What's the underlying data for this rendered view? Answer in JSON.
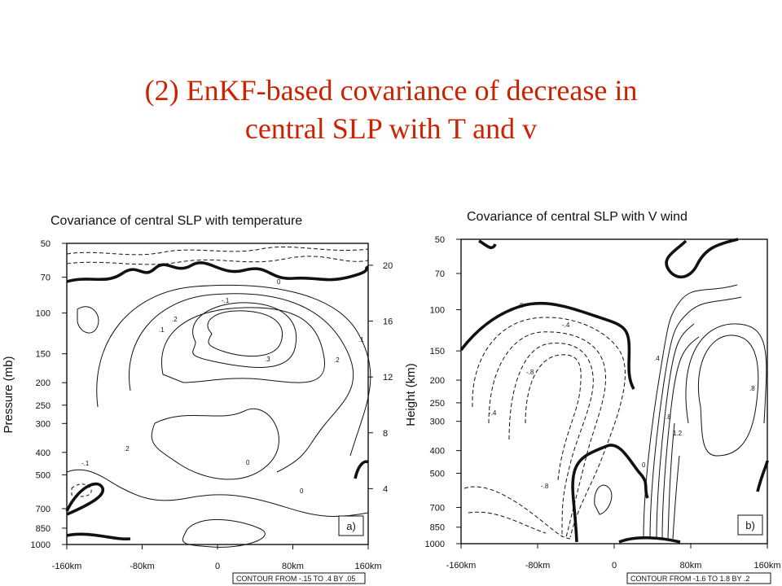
{
  "slide": {
    "title_line1": "(2) EnKF-based covariance of decrease in",
    "title_line2": "central SLP with T and v"
  },
  "chart_data": [
    {
      "type": "contour",
      "title": "Covariance of central SLP with temperature",
      "ylabel": "Pressure (mb)",
      "xticks": [
        "-160km",
        "-80km",
        "0",
        "80km",
        "160km"
      ],
      "yticks_pressure": [
        "50",
        "70",
        "100",
        "150",
        "200",
        "250",
        "300",
        "400",
        "500",
        "700",
        "850",
        "1000"
      ],
      "yticks_height_right": [
        "20",
        "16",
        "12",
        "8",
        "4"
      ],
      "contour_note": "CONTOUR FROM -.15 TO .4 BY .05",
      "contour_labels": [
        "0",
        "-.1",
        ".1",
        ".2",
        ".3",
        ".2",
        ".1",
        ".2",
        "0",
        "-.1",
        "0"
      ],
      "panel_label": "a)"
    },
    {
      "type": "contour",
      "title": "Covariance of central SLP with V wind",
      "ylabel": "Height (km)",
      "xticks": [
        "-160km",
        "-80km",
        "0",
        "80km",
        "160km"
      ],
      "yticks_pressure": [
        "50",
        "70",
        "100",
        "150",
        "200",
        "250",
        "300",
        "400",
        "500",
        "700",
        "850",
        "1000"
      ],
      "contour_note": "CONTOUR FROM -1.6 TO 1.8 BY .2",
      "contour_labels": [
        "0",
        "-.4",
        "-.8",
        "-.4",
        "-.8",
        ".4",
        ".8",
        ".8",
        "1.2",
        "0"
      ],
      "panel_label": "b)"
    }
  ]
}
